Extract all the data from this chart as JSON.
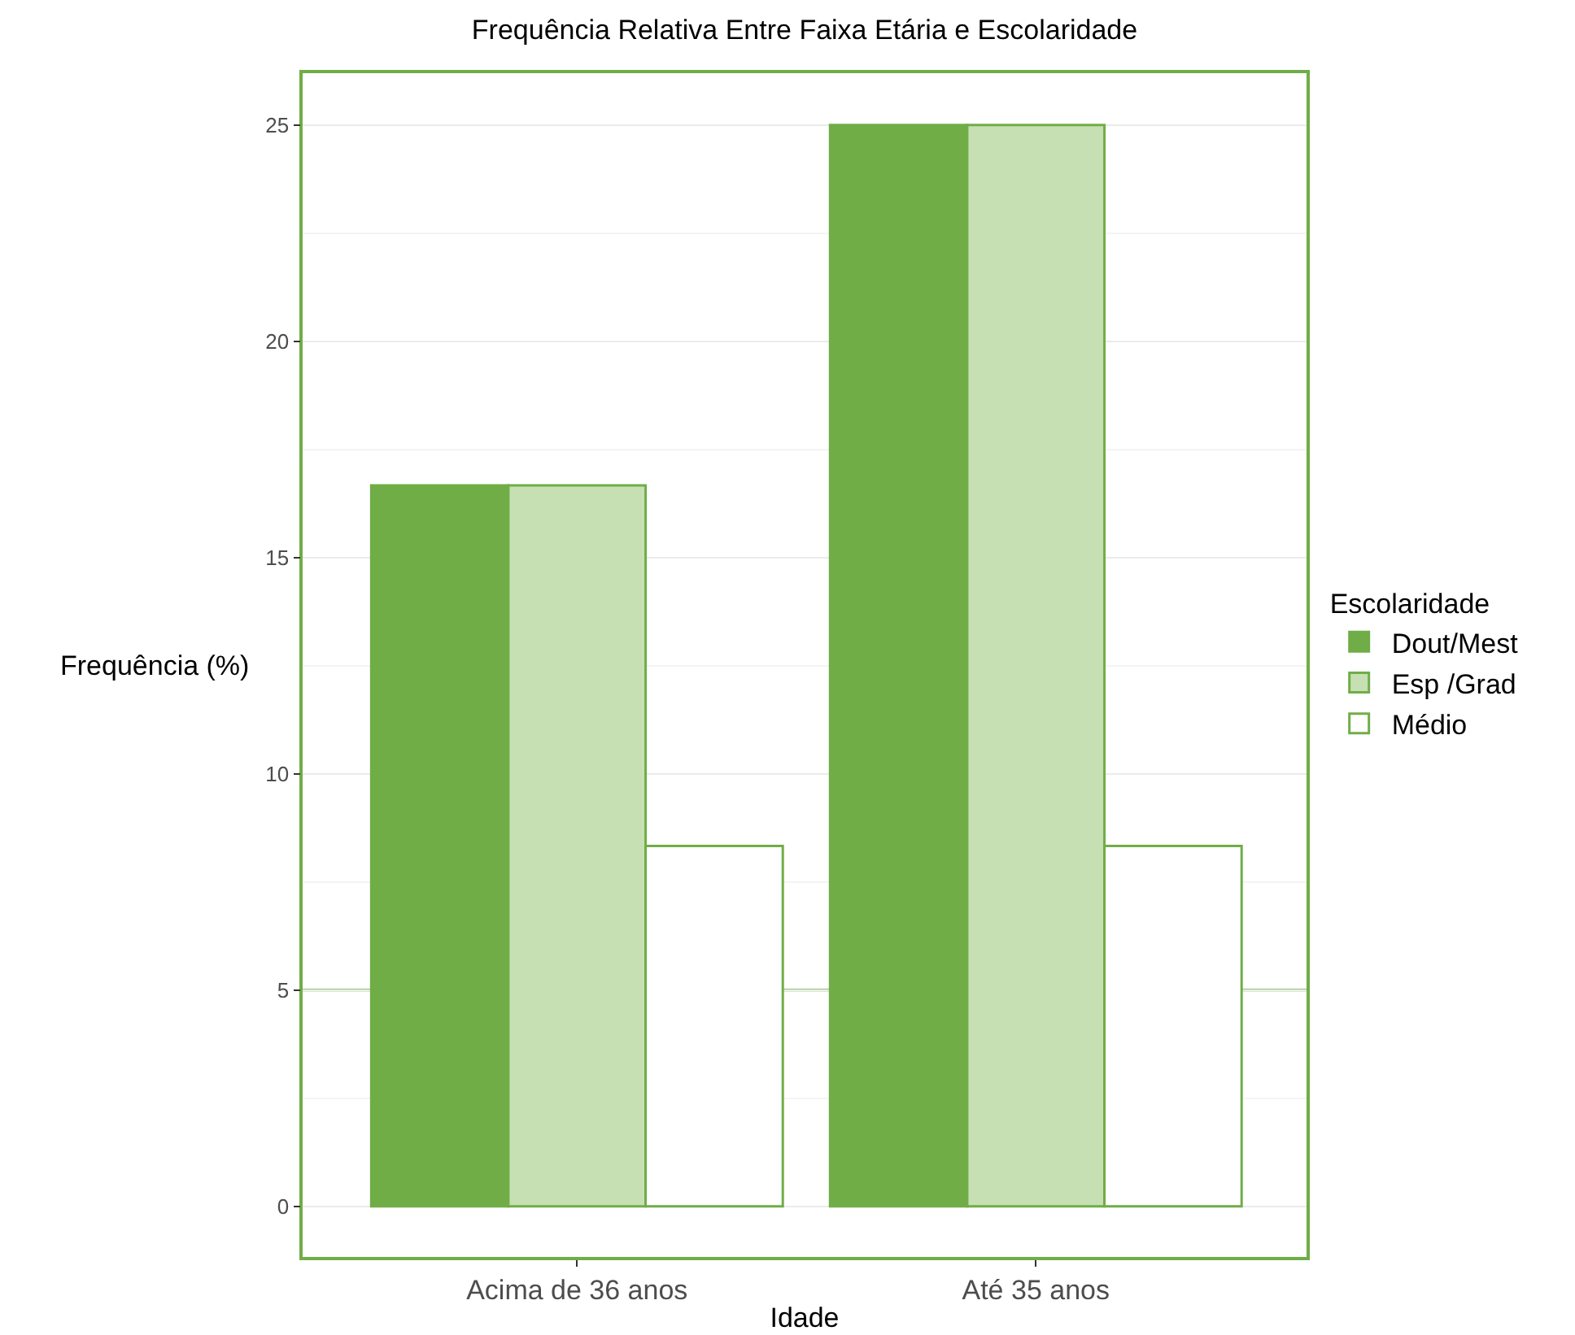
{
  "chart_data": {
    "type": "bar",
    "title": "Frequência Relativa Entre Faixa Etária e Escolaridade",
    "xlabel": "Idade",
    "ylabel": "Frequência (%)",
    "legend_title": "Escolaridade",
    "categories": [
      "Acima de 36 anos",
      "Até 35 anos"
    ],
    "series": [
      {
        "name": "Dout/Mest",
        "color": "#70ad47",
        "values": [
          16.67,
          25
        ]
      },
      {
        "name": "Esp /Grad",
        "color": "#c6e0b4",
        "values": [
          16.67,
          25
        ]
      },
      {
        "name": "Médio",
        "color": "#ffffff",
        "values": [
          8.33,
          8.33
        ]
      }
    ],
    "ref_lines": [
      {
        "axis": "y",
        "value": 5,
        "color": "#70ad47"
      }
    ],
    "ylim": [
      -1.17,
      26.2
    ],
    "yticks": [
      0,
      5,
      10,
      15,
      20,
      25
    ],
    "grid": "y",
    "legend": "right"
  }
}
